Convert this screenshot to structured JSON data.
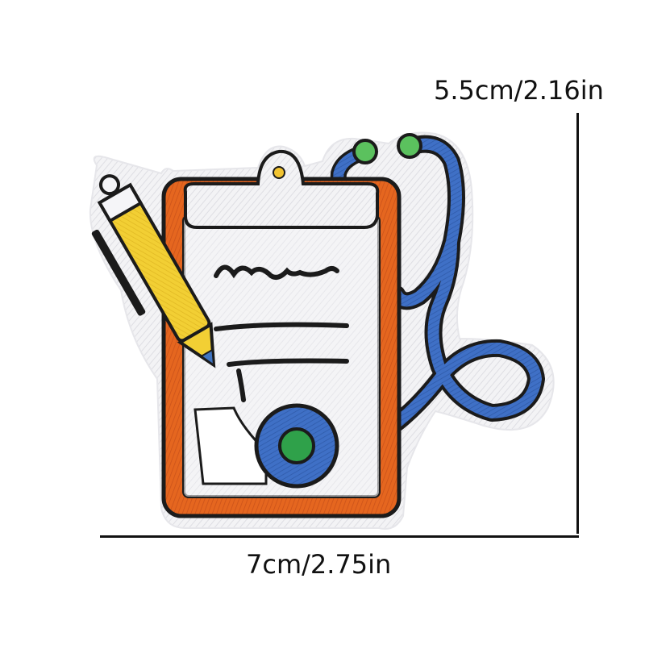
{
  "image": {
    "subject": "embroidered-patch-clipboard-stethoscope-icon",
    "colors": {
      "background": "#ffffff",
      "felt": "#f2f2f4",
      "outline": "#1b1b1b",
      "clipboard_frame": "#e3641f",
      "paper": "#f5f5f8",
      "clip": "#e6e6e6",
      "pencil_body": "#f2cf34",
      "pencil_tip": "#3f74c2",
      "stethoscope": "#3d6fc4",
      "chestpiece_center": "#2fa14a",
      "earpiece": "#5bc15e"
    }
  },
  "dimensions": {
    "height_label": "5.5cm/2.16in",
    "width_label": "7cm/2.75in"
  }
}
